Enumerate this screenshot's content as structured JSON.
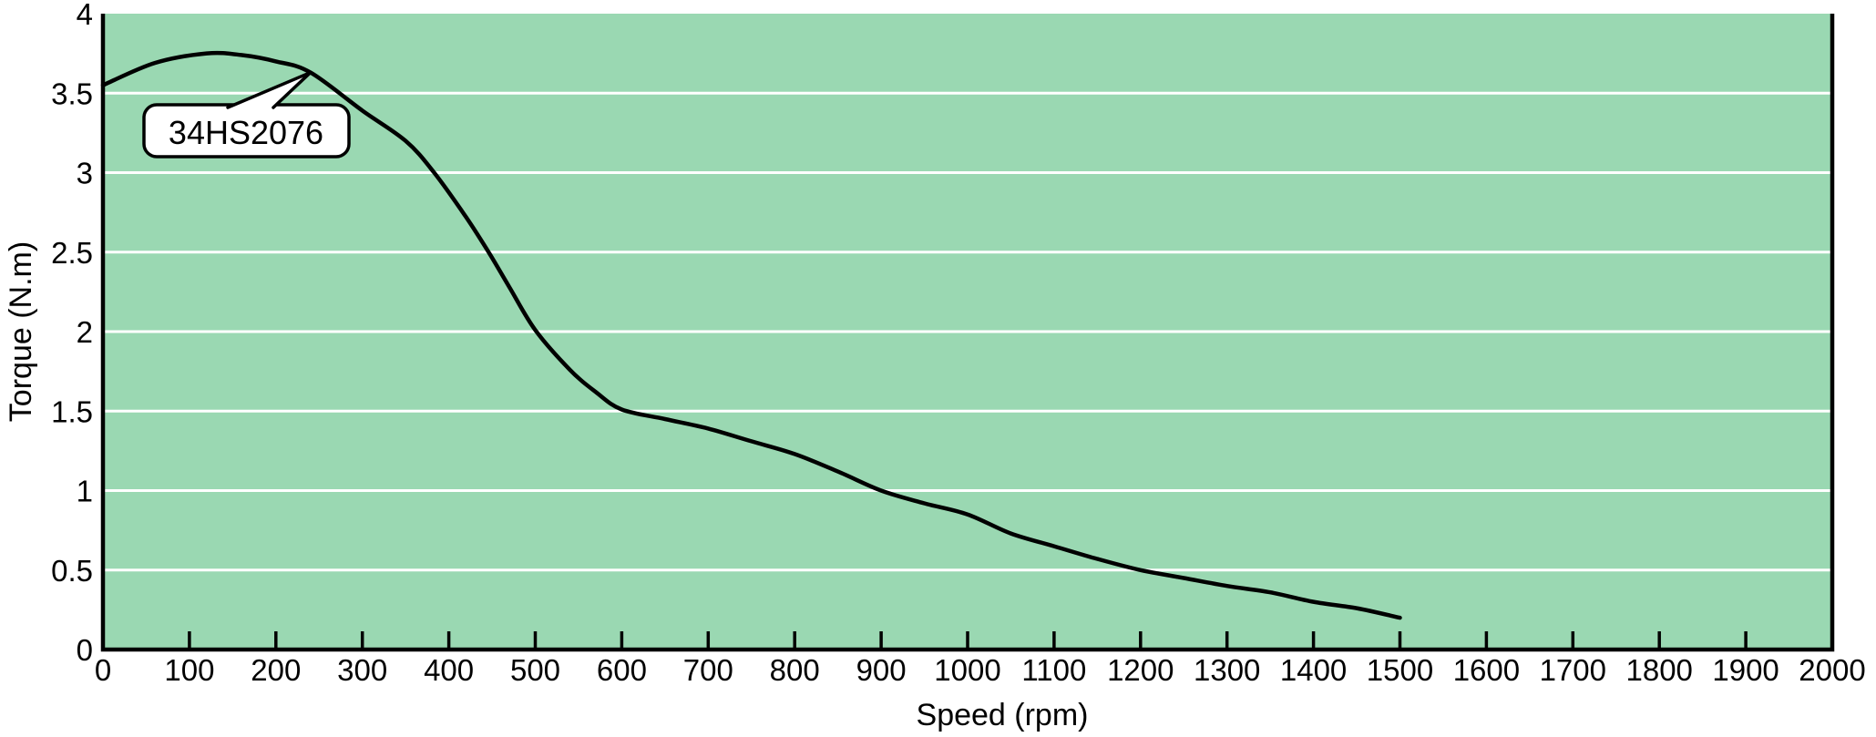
{
  "chart_data": {
    "type": "line",
    "title": "",
    "xlabel": "Speed (rpm)",
    "ylabel": "Torque (N.m)",
    "xlim": [
      0,
      2000
    ],
    "ylim": [
      0,
      4
    ],
    "xticks": [
      0,
      100,
      200,
      300,
      400,
      500,
      600,
      700,
      800,
      900,
      1000,
      1100,
      1200,
      1300,
      1400,
      1500,
      1600,
      1700,
      1800,
      1900,
      2000
    ],
    "yticks": [
      0,
      0.5,
      1,
      1.5,
      2,
      2.5,
      3,
      3.5,
      4
    ],
    "grid": {
      "horizontal": true,
      "vertical": false,
      "color": "#ffffff"
    },
    "plot_background": "#9ad8b2",
    "line_color": "#000000",
    "series": [
      {
        "name": "34HS2076",
        "points": [
          [
            0,
            3.55
          ],
          [
            60,
            3.69
          ],
          [
            120,
            3.75
          ],
          [
            160,
            3.74
          ],
          [
            200,
            3.7
          ],
          [
            240,
            3.63
          ],
          [
            300,
            3.39
          ],
          [
            350,
            3.2
          ],
          [
            383,
            3.0
          ],
          [
            420,
            2.72
          ],
          [
            446,
            2.5
          ],
          [
            470,
            2.28
          ],
          [
            500,
            2.01
          ],
          [
            540,
            1.76
          ],
          [
            570,
            1.62
          ],
          [
            600,
            1.51
          ],
          [
            650,
            1.45
          ],
          [
            700,
            1.39
          ],
          [
            750,
            1.31
          ],
          [
            800,
            1.23
          ],
          [
            850,
            1.12
          ],
          [
            900,
            1.0
          ],
          [
            950,
            0.92
          ],
          [
            1000,
            0.85
          ],
          [
            1050,
            0.73
          ],
          [
            1100,
            0.65
          ],
          [
            1150,
            0.57
          ],
          [
            1200,
            0.5
          ],
          [
            1250,
            0.45
          ],
          [
            1300,
            0.4
          ],
          [
            1350,
            0.36
          ],
          [
            1400,
            0.3
          ],
          [
            1450,
            0.26
          ],
          [
            1500,
            0.2
          ]
        ]
      }
    ],
    "annotation": {
      "text": "34HS2076",
      "attach_point": {
        "speed": 240,
        "torque": 3.63
      }
    }
  }
}
